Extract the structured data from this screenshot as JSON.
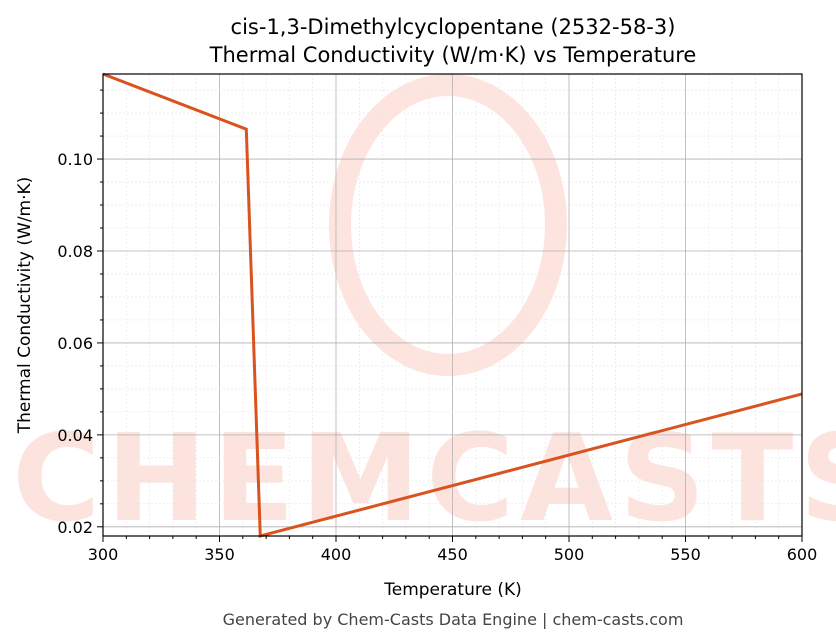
{
  "chart_data": {
    "type": "line",
    "title": "cis-1,3-Dimethylcyclopentane (2532-58-3)",
    "subtitle": "Thermal Conductivity (W/m·K) vs Temperature",
    "xlabel": "Temperature (K)",
    "ylabel": "Thermal Conductivity (W/m·K)",
    "xlim": [
      300,
      600
    ],
    "ylim": [
      0.018,
      0.1185
    ],
    "xticks": [
      300,
      350,
      400,
      450,
      500,
      550,
      600
    ],
    "yticks": [
      0.02,
      0.04,
      0.06,
      0.08,
      0.1
    ],
    "ytick_labels": [
      "0.02",
      "0.04",
      "0.06",
      "0.08",
      "0.10"
    ],
    "grid": true,
    "series": [
      {
        "color": "#d9531e",
        "x": [
          300,
          361.5,
          367.5,
          600
        ],
        "y": [
          0.1185,
          0.1065,
          0.018,
          0.0489
        ]
      }
    ]
  },
  "watermark": "CHEMCASTS",
  "footer": "Generated by Chem-Casts Data Engine | chem-casts.com"
}
